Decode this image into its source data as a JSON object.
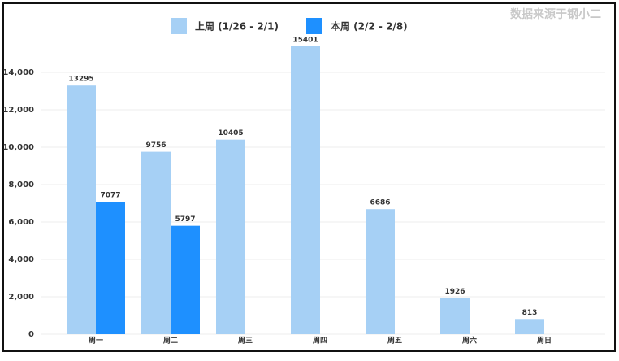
{
  "chart_data": {
    "type": "bar",
    "source": "数据来源于钢小二",
    "categories": [
      "周一",
      "周二",
      "周三",
      "周四",
      "周五",
      "周六",
      "周日"
    ],
    "series": [
      {
        "name": "上周 (1/26 - 2/1)",
        "color": "#a6d0f5",
        "values": [
          13295,
          9756,
          10405,
          15401,
          6686,
          1926,
          813
        ]
      },
      {
        "name": "本周 (2/2 - 2/8)",
        "color": "#1e90ff",
        "values": [
          7077,
          5797,
          null,
          null,
          null,
          null,
          null
        ]
      }
    ],
    "ylim": [
      0,
      16000
    ],
    "yticks": [
      0,
      {
        "value": 2000,
        "label": "2,000"
      },
      {
        "value": 4000,
        "label": "4,000"
      },
      {
        "value": 6000,
        "label": "6,000"
      },
      {
        "value": 8000,
        "label": "8,000"
      },
      {
        "value": 10000,
        "label": "10,000"
      },
      {
        "value": 12000,
        "label": "12,000"
      },
      {
        "value": 14000,
        "label": "14,000"
      }
    ],
    "grid": true,
    "legend": "top"
  }
}
